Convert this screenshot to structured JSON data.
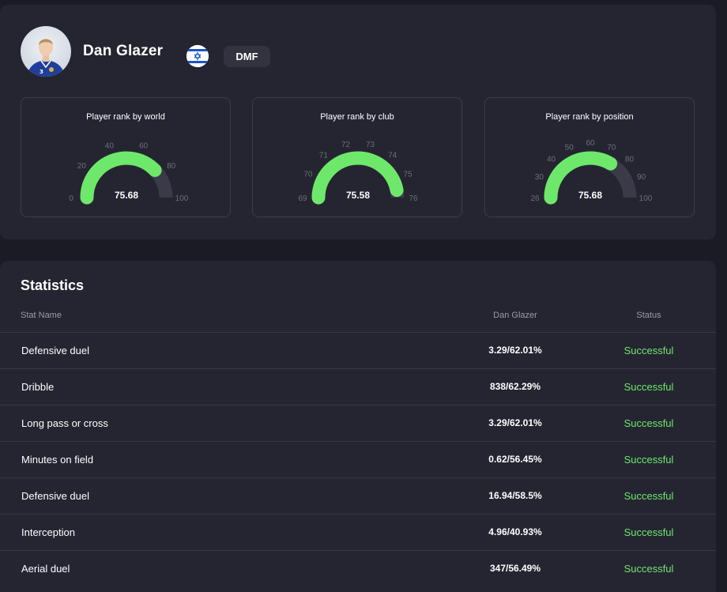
{
  "player": {
    "name": "Dan Glazer",
    "position": "DMF",
    "flag_icon": "israel-flag-icon",
    "avatar": "player-avatar"
  },
  "colors": {
    "gauge_fill": "#6ee86a",
    "gauge_track": "#3a3a48",
    "status_success": "#6ee86a",
    "card_bg": "#252532",
    "page_bg": "#1b1b25"
  },
  "gauges": [
    {
      "title": "Player rank by world",
      "value_label": "75.68",
      "value": 75.68,
      "min": 0,
      "max": 100,
      "ticks": [
        "0",
        "20",
        "40",
        "60",
        "80",
        "100"
      ]
    },
    {
      "title": "Player rank by club",
      "value_label": "75.58",
      "value": 75.58,
      "min": 69,
      "max": 76,
      "ticks": [
        "69",
        "70",
        "71",
        "72",
        "73",
        "74",
        "75",
        "76"
      ]
    },
    {
      "title": "Player rank by position",
      "value_label": "75.68",
      "value": 75.68,
      "min": 26,
      "max": 100,
      "ticks": [
        "26",
        "30",
        "40",
        "50",
        "60",
        "70",
        "80",
        "90",
        "100"
      ]
    }
  ],
  "statistics": {
    "title": "Statistics",
    "columns": {
      "name": "Stat Name",
      "player": "Dan Glazer",
      "status": "Status"
    },
    "rows": [
      {
        "name": "Defensive duel",
        "value": "3.29/62.01%",
        "status": "Successful"
      },
      {
        "name": "Dribble",
        "value": "838/62.29%",
        "status": "Successful"
      },
      {
        "name": "Long pass or cross",
        "value": "3.29/62.01%",
        "status": "Successful"
      },
      {
        "name": "Minutes on field",
        "value": "0.62/56.45%",
        "status": "Successful"
      },
      {
        "name": "Defensive duel",
        "value": "16.94/58.5%",
        "status": "Successful"
      },
      {
        "name": "Interception",
        "value": "4.96/40.93%",
        "status": "Successful"
      },
      {
        "name": "Aerial duel",
        "value": "347/56.49%",
        "status": "Successful"
      }
    ]
  }
}
